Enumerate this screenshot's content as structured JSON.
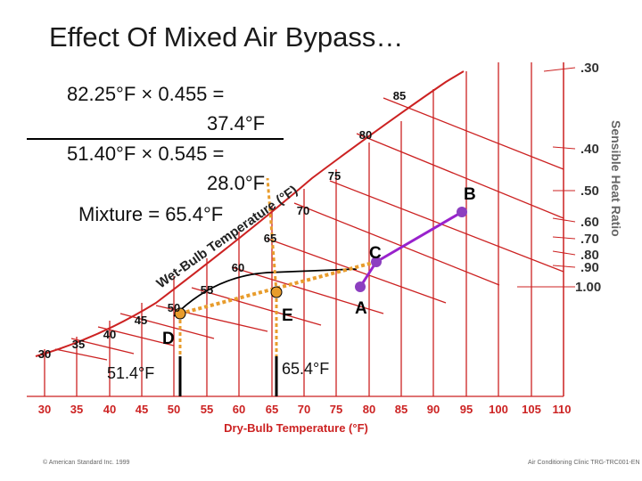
{
  "title": "Effect Of Mixed Air Bypass…",
  "calc": {
    "line1": "82.25°F  × 0.455  =",
    "line2": "37.4°F",
    "line3": "51.40°F  × 0.545  =",
    "line4": "28.0°F",
    "line5": "Mixture  =  65.4°F"
  },
  "chart": {
    "x_axis_title": "Dry-Bulb Temperature (°F)",
    "x_ticks": [
      "30",
      "35",
      "40",
      "45",
      "50",
      "55",
      "60",
      "65",
      "70",
      "75",
      "80",
      "85",
      "90",
      "95",
      "100",
      "105",
      "110"
    ],
    "wb_axis_title": "Wet-Bulb Temperature (°F)",
    "wb_labels": [
      "30",
      "35",
      "40",
      "45",
      "50",
      "55",
      "60",
      "65",
      "70",
      "75",
      "80",
      "85"
    ],
    "shr_title": "Sensible Heat Ratio",
    "shr_labels": [
      ".30",
      ".40",
      ".50",
      ".60",
      ".70",
      ".80",
      ".90",
      "1.00"
    ],
    "points": {
      "A": "A",
      "B": "B",
      "C": "C",
      "D": "D",
      "E": "E"
    },
    "temp_d": "51.4°F",
    "temp_e": "65.4°F",
    "colors": {
      "grid": "#cc2222",
      "curve": "#000000",
      "process": "#9922cc",
      "bypass": "#e89c2c",
      "point": "#8c3fc0"
    }
  },
  "footer": {
    "left": "© American Standard Inc. 1999",
    "right": "Air Conditioning Clinic TRG-TRC001-EN"
  }
}
